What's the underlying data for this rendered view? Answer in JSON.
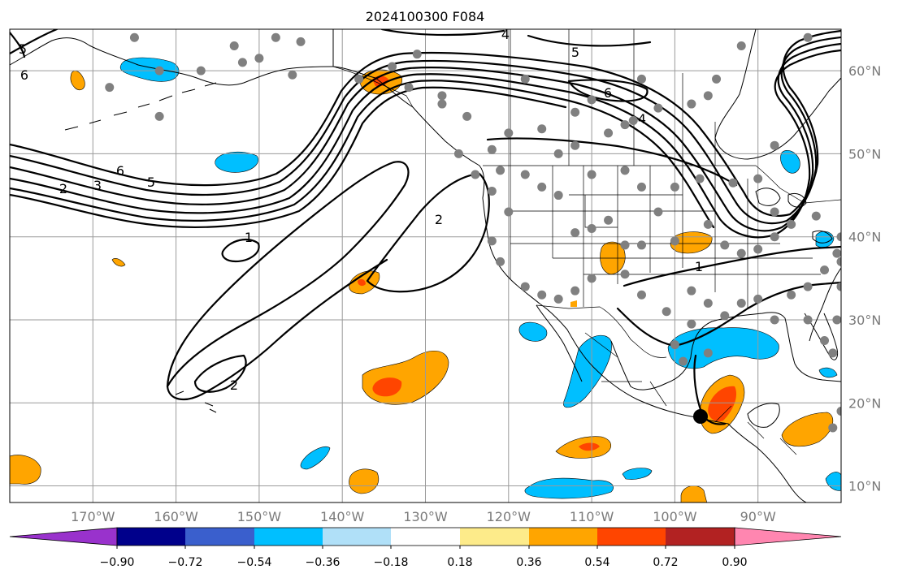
{
  "title": "2024100300 F084",
  "map": {
    "lon_range": [
      -180,
      -80
    ],
    "lat_range": [
      8,
      65
    ],
    "lon_ticks": [
      "170°W",
      "160°W",
      "150°W",
      "140°W",
      "130°W",
      "120°W",
      "110°W",
      "100°W",
      "90°W"
    ],
    "lon_tick_values": [
      -170,
      -160,
      -150,
      -140,
      -130,
      -120,
      -110,
      -100,
      -90
    ],
    "lat_ticks": [
      "10°N",
      "20°N",
      "30°N",
      "40°N",
      "50°N",
      "60°N"
    ],
    "lat_tick_values": [
      10,
      20,
      30,
      40,
      50,
      60
    ],
    "grid": true,
    "grid_color": "#9a9a9a",
    "tick_label_color": "#7a7a7a"
  },
  "colorbar": {
    "tick_labels": [
      "−0.90",
      "−0.72",
      "−0.54",
      "−0.36",
      "−0.18",
      "0.18",
      "0.36",
      "0.54",
      "0.72",
      "0.90"
    ],
    "colors": [
      "#9932cc",
      "#00008b",
      "#3a5fcd",
      "#00bfff",
      "#b0e0f8",
      "#ffffff",
      "#fdeb8a",
      "#ffa500",
      "#ff4500",
      "#b22222",
      "#ff86b0"
    ],
    "extend": "both"
  },
  "contour_labels": [
    "6",
    "5",
    "2",
    "3",
    "6",
    "5",
    "4",
    "5",
    "6",
    "4",
    "1",
    "2",
    "1",
    "2"
  ],
  "station_color": "#808080",
  "marker_color": "#000000"
}
